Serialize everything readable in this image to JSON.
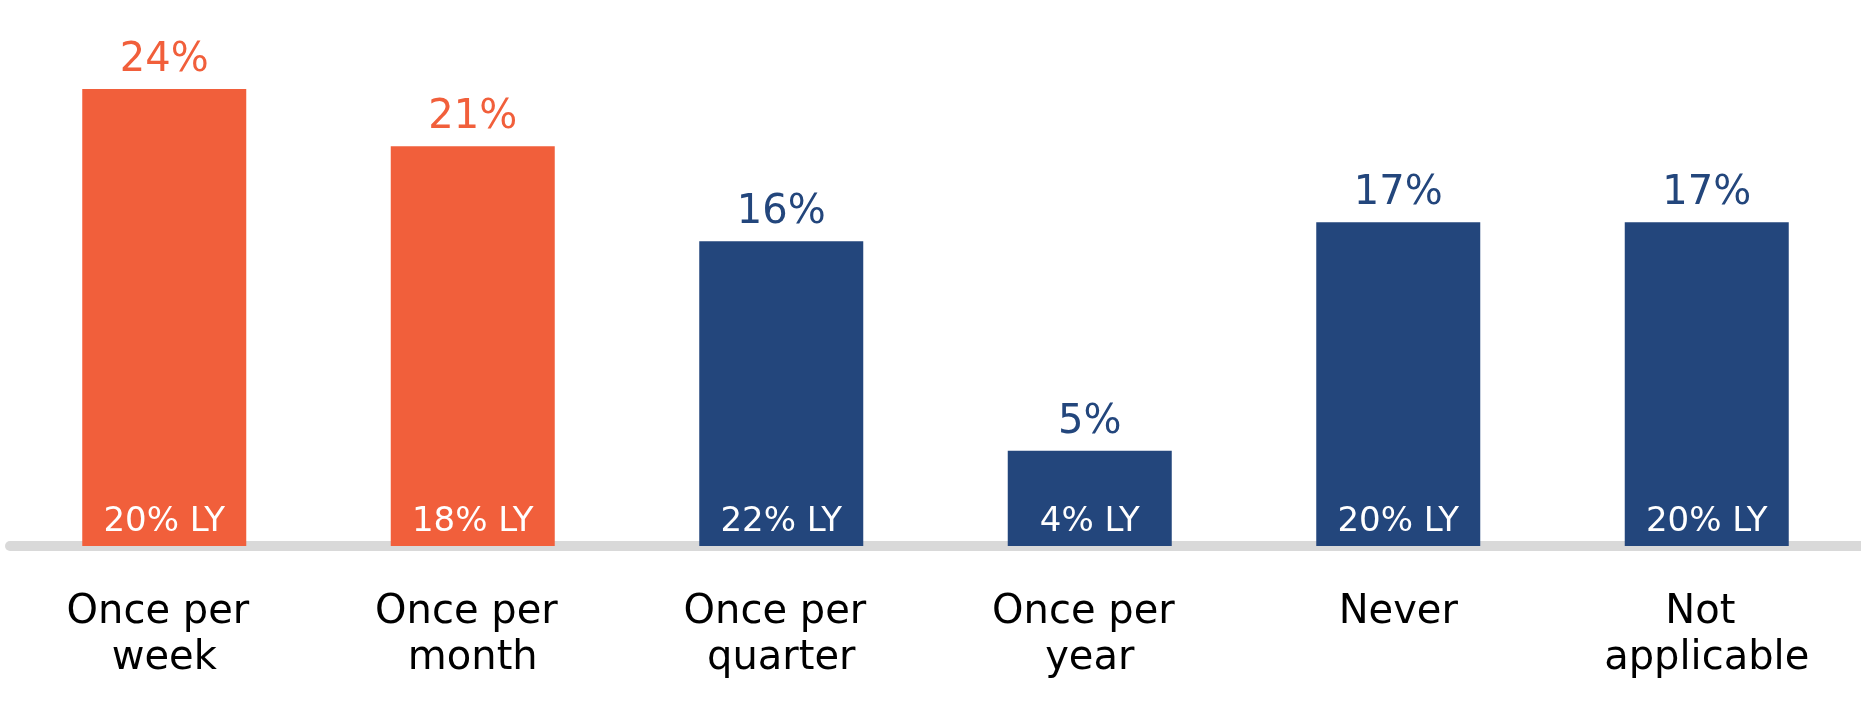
{
  "chart_data": {
    "type": "bar",
    "categories": [
      "Once per week",
      "Once per month",
      "Once per quarter",
      "Once per year",
      "Never",
      "Not applicable"
    ],
    "values": [
      24,
      21,
      16,
      5,
      17,
      17
    ],
    "colors": [
      "#f15f3b",
      "#f15f3b",
      "#23467c",
      "#23467c",
      "#23467c",
      "#23467c"
    ],
    "value_labels": [
      "24%",
      "21%",
      "16%",
      "5%",
      "17%",
      "17%"
    ],
    "annotations": [
      {
        "text": "20% LY",
        "x": "Once per week",
        "y": 0
      },
      {
        "text": "18% LY",
        "x": "Once per month",
        "y": 0
      },
      {
        "text": "22% LY",
        "x": "Once per quarter",
        "y": 0
      },
      {
        "text": "4% LY",
        "x": "Once per year",
        "y": 0
      },
      {
        "text": "20% LY",
        "x": "Never",
        "y": 0
      },
      {
        "text": "20% LY",
        "x": "Not applicable",
        "y": 0
      }
    ]
  }
}
